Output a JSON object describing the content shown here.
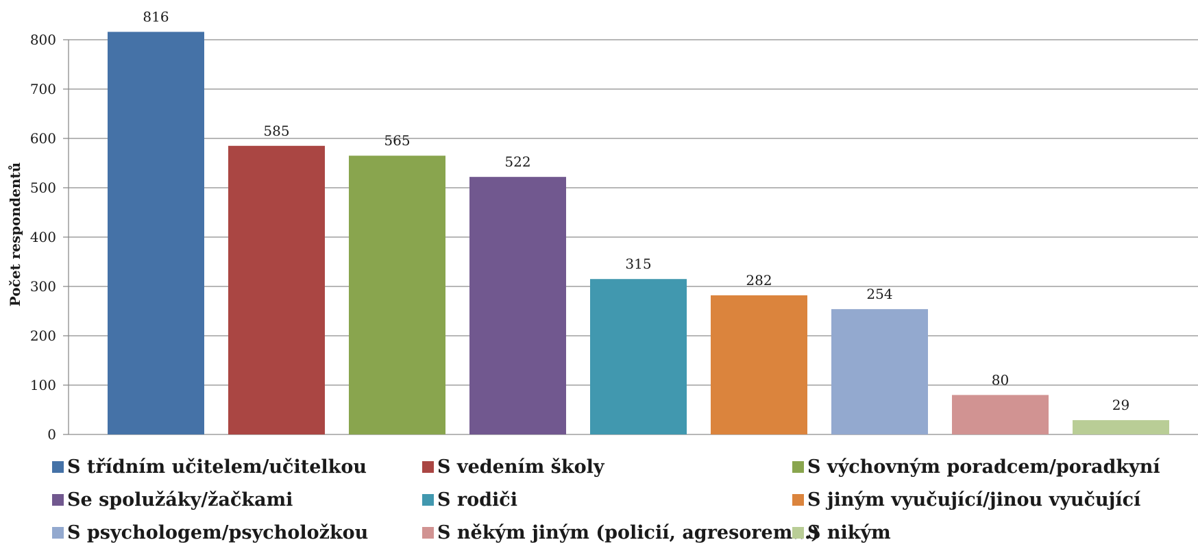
{
  "chart_data": {
    "type": "bar",
    "title": "",
    "xlabel": "",
    "ylabel": "Počet respondentů",
    "ylim": [
      0,
      800
    ],
    "yticks": [
      0,
      100,
      200,
      300,
      400,
      500,
      600,
      700,
      800
    ],
    "grid": true,
    "legend_position": "bottom",
    "categories": [
      "S třídním učitelem/učitelkou",
      "S vedením školy",
      "S výchovným poradcem/poradkyní",
      "Se spolužáky/žačkami",
      "S rodiči",
      "S jiným vyučující/jinou vyučující",
      "S psychologem/psycholožkou",
      "S někým jiným (policií, agresorem…)",
      "S nikým"
    ],
    "values": [
      816,
      585,
      565,
      522,
      315,
      282,
      254,
      80,
      29
    ],
    "colors": [
      "#4572a7",
      "#aa4643",
      "#89a54e",
      "#71588f",
      "#4198af",
      "#db843d",
      "#93a9cf",
      "#d19392",
      "#b9cd96"
    ],
    "data_labels": true
  }
}
